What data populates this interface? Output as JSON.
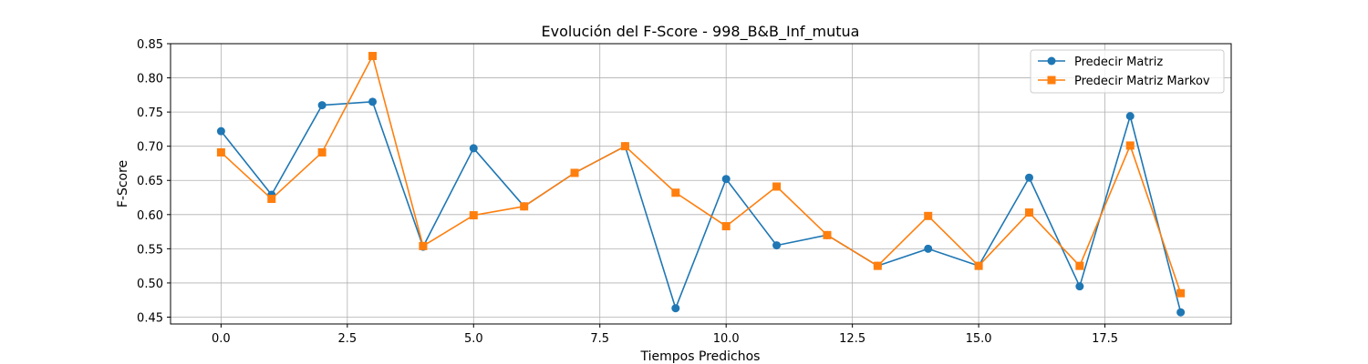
{
  "chart_data": {
    "type": "line",
    "title": "Evolución del F-Score - 998_B&B_Inf_mutua",
    "xlabel": "Tiempos Predichos",
    "ylabel": "F-Score",
    "xlim": [
      -1,
      20
    ],
    "ylim": [
      0.44,
      0.85
    ],
    "grid": true,
    "legend_position": "top-right",
    "x_ticks": [
      0.0,
      2.5,
      5.0,
      7.5,
      10.0,
      12.5,
      15.0,
      17.5
    ],
    "x_tick_labels": [
      "0.0",
      "2.5",
      "5.0",
      "7.5",
      "10.0",
      "12.5",
      "15.0",
      "17.5"
    ],
    "y_ticks": [
      0.45,
      0.5,
      0.55,
      0.6,
      0.65,
      0.7,
      0.75,
      0.8,
      0.85
    ],
    "y_tick_labels": [
      "0.45",
      "0.50",
      "0.55",
      "0.60",
      "0.65",
      "0.70",
      "0.75",
      "0.80",
      "0.85"
    ],
    "x": [
      0,
      1,
      2,
      3,
      4,
      5,
      6,
      7,
      8,
      9,
      10,
      11,
      12,
      13,
      14,
      15,
      16,
      17,
      18,
      19
    ],
    "series": [
      {
        "name": "Predecir Matriz",
        "color": "#1f77b4",
        "marker": "circle",
        "values": [
          0.722,
          0.629,
          0.76,
          0.765,
          0.553,
          0.697,
          0.612,
          0.661,
          0.7,
          0.463,
          0.652,
          0.555,
          0.57,
          0.525,
          0.55,
          0.525,
          0.654,
          0.495,
          0.744,
          0.457
        ]
      },
      {
        "name": "Predecir Matriz Markov",
        "color": "#ff7f0e",
        "marker": "square",
        "values": [
          0.691,
          0.623,
          0.691,
          0.832,
          0.554,
          0.599,
          0.612,
          0.661,
          0.7,
          0.632,
          0.583,
          0.641,
          0.57,
          0.525,
          0.598,
          0.525,
          0.603,
          0.525,
          0.701,
          0.485
        ]
      }
    ]
  }
}
